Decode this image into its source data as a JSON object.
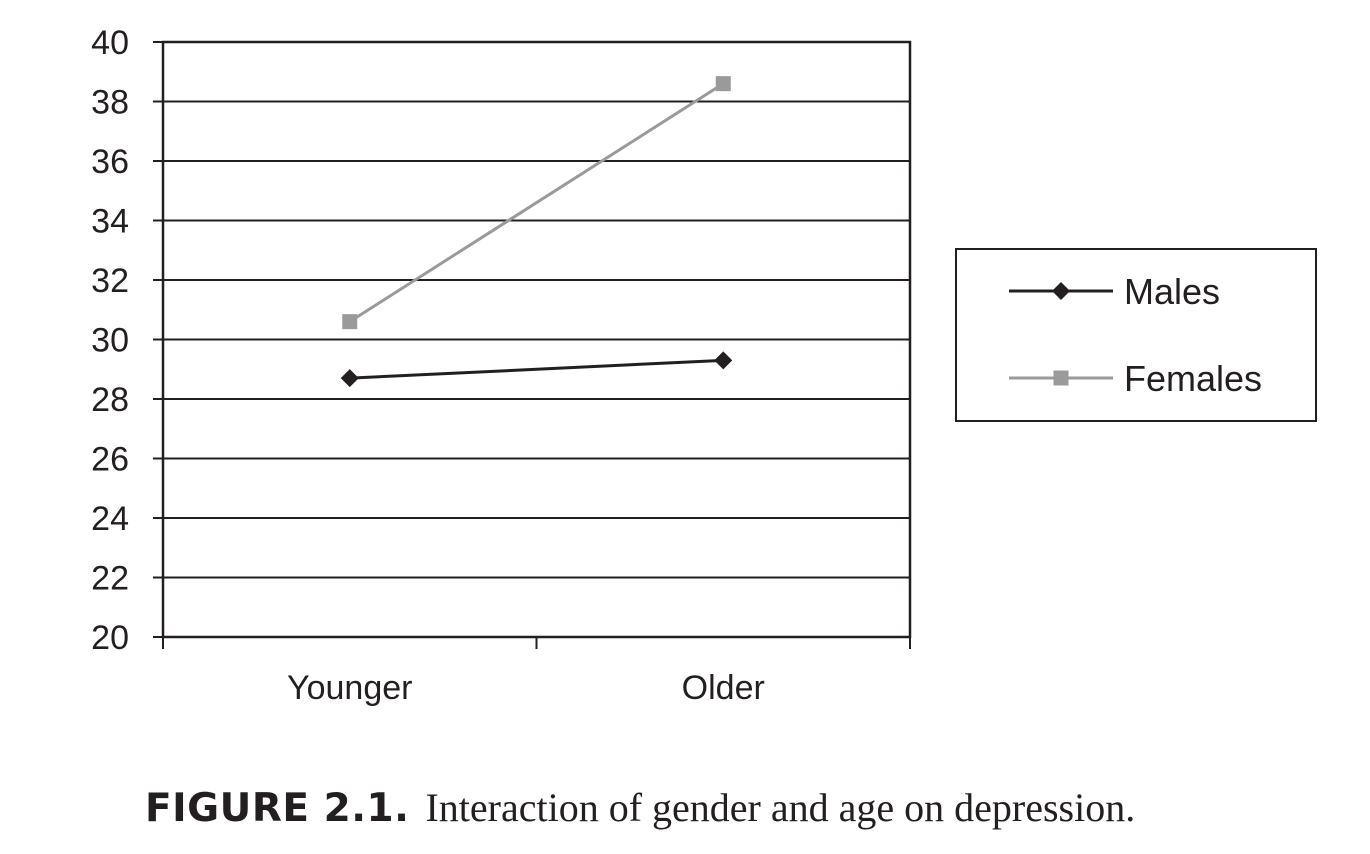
{
  "chart_data": {
    "type": "line",
    "categories": [
      "Younger",
      "Older"
    ],
    "series": [
      {
        "name": "Males",
        "values": [
          28.7,
          29.3
        ],
        "color": "#231f20",
        "marker": "diamond"
      },
      {
        "name": "Females",
        "values": [
          30.6,
          38.6
        ],
        "color": "#9a9a9a",
        "marker": "square"
      }
    ],
    "yticks": [
      "20",
      "22",
      "24",
      "26",
      "28",
      "30",
      "32",
      "34",
      "36",
      "38",
      "40"
    ],
    "ylim": [
      20,
      40
    ],
    "grid": true,
    "legend": "right",
    "title": "",
    "xlabel": "",
    "ylabel": ""
  },
  "caption": {
    "label": "FIGURE 2.1.",
    "text": "Interaction of gender and age on depression."
  }
}
